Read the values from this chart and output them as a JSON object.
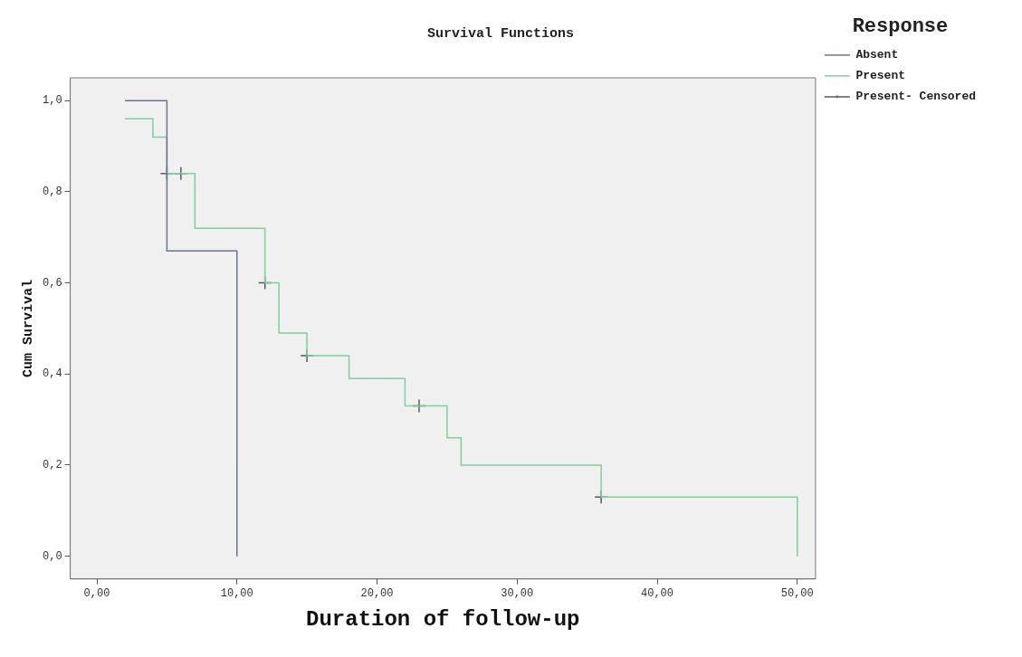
{
  "chart_data": {
    "type": "step",
    "title": "Survival Functions",
    "xlabel": "Duration of follow-up",
    "ylabel": "Cum Survival",
    "legend_title": "Response",
    "legend": "top right",
    "grid": false,
    "xlim": [
      -1.9,
      51.3
    ],
    "xticks": [
      {
        "value": 0,
        "label": "0,00"
      },
      {
        "value": 10,
        "label": "10,00"
      },
      {
        "value": 20,
        "label": "20,00"
      },
      {
        "value": 30,
        "label": "30,00"
      },
      {
        "value": 40,
        "label": "40,00"
      },
      {
        "value": 50,
        "label": "50,00"
      }
    ],
    "ylim": [
      -0.05,
      1.05
    ],
    "yticks": [
      {
        "value": 0,
        "label": "0,0"
      },
      {
        "value": 0.2,
        "label": "0,2"
      },
      {
        "value": 0.4,
        "label": "0,4"
      },
      {
        "value": 0.6,
        "label": "0,6"
      },
      {
        "value": 0.8,
        "label": "0,8"
      },
      {
        "value": 1,
        "label": "1,0"
      }
    ],
    "series": [
      {
        "name": "Absent",
        "color": "#6a7391",
        "marker": "none",
        "x": [
          2,
          5,
          10
        ],
        "values": [
          1,
          0.67,
          0
        ]
      },
      {
        "name": "Present",
        "color": "#7fcf9a",
        "marker": "none",
        "x": [
          2,
          4,
          5,
          7,
          12,
          13,
          15,
          18,
          22,
          25,
          26,
          36,
          50
        ],
        "values": [
          0.96,
          0.92,
          0.84,
          0.72,
          0.6,
          0.49,
          0.44,
          0.39,
          0.33,
          0.26,
          0.2,
          0.13,
          0
        ]
      },
      {
        "name": "Present- Censored",
        "type": "scatter",
        "color": "#555a66",
        "marker": "cross",
        "x": [
          5,
          6,
          12,
          15,
          23,
          36
        ],
        "values": [
          0.84,
          0.84,
          0.6,
          0.44,
          0.33,
          0.13
        ]
      }
    ]
  }
}
